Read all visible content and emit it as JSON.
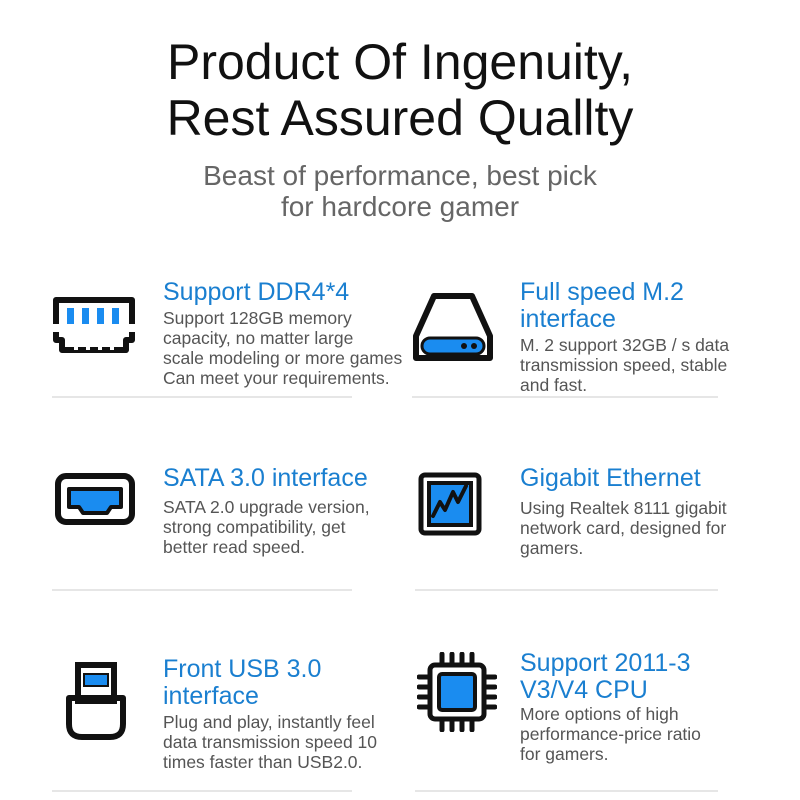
{
  "title": [
    "Product Of Ingenuity,",
    "Rest Assured Quallty"
  ],
  "subtitle": [
    "Beast of performance, best pick",
    "for hardcore gamer"
  ],
  "accent": "#1a7fd0",
  "features": [
    {
      "icon": "ram-icon",
      "title": [
        "Support DDR4*4"
      ],
      "body": [
        "Support 128GB memory",
        "capacity, no matter large",
        "scale modeling or more games",
        "Can meet your requirements."
      ]
    },
    {
      "icon": "m2-drive-icon",
      "title": [
        "Full speed M.2",
        "interface"
      ],
      "body": [
        "M. 2 support 32GB / s data",
        "transmission speed, stable",
        "and fast."
      ]
    },
    {
      "icon": "sata-port-icon",
      "title": [
        "SATA 3.0 interface"
      ],
      "body": [
        "SATA 2.0 upgrade version,",
        "strong compatibility, get",
        "better read speed."
      ]
    },
    {
      "icon": "ethernet-chart-icon",
      "title": [
        "Gigabit Ethernet"
      ],
      "body": [
        "Using Realtek 8111 gigabit",
        "network card, designed for",
        "gamers."
      ]
    },
    {
      "icon": "usb-icon",
      "title": [
        "Front USB 3.0",
        "interface"
      ],
      "body": [
        "Plug and play, instantly feel",
        "data transmission speed 10",
        "times faster than USB2.0."
      ]
    },
    {
      "icon": "cpu-icon",
      "title": [
        "Support 2011-3",
        "V3/V4 CPU"
      ],
      "body": [
        "More options of high",
        "performance-price ratio",
        "for gamers."
      ]
    }
  ]
}
